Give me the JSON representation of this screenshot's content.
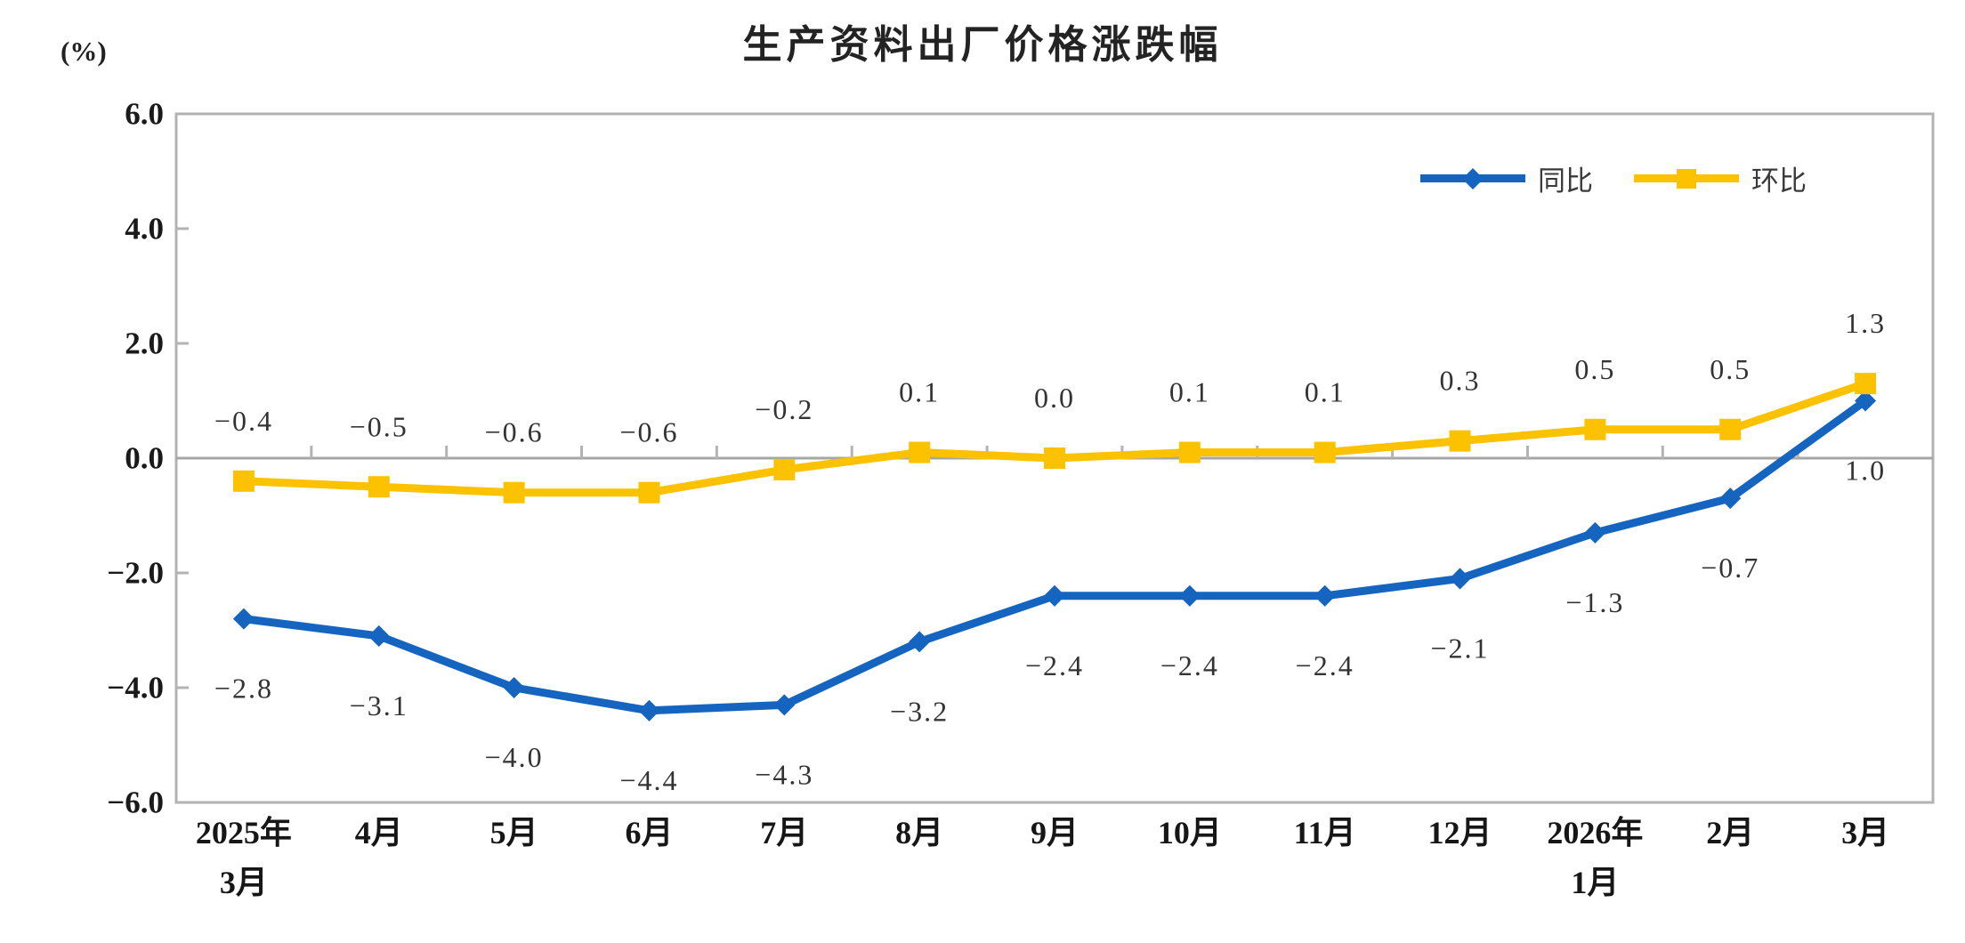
{
  "chart_data": {
    "type": "line",
    "title": "生产资料出厂价格涨跌幅",
    "unit_label": "(%)",
    "categories": [
      "2025年\n3月",
      "4月",
      "5月",
      "6月",
      "7月",
      "8月",
      "9月",
      "10月",
      "11月",
      "12月",
      "2026年\n1月",
      "2月",
      "3月"
    ],
    "ylim": [
      -6,
      6
    ],
    "yticks": [
      6.0,
      4.0,
      2.0,
      0.0,
      -2.0,
      -4.0,
      -6.0
    ],
    "grid": false,
    "legend_position": "top-right",
    "series": [
      {
        "name": "同比",
        "color": "#1565c0",
        "marker": "diamond",
        "label_position": "below",
        "values": [
          -2.8,
          -3.1,
          -4.0,
          -4.4,
          -4.3,
          -3.2,
          -2.4,
          -2.4,
          -2.4,
          -2.1,
          -1.3,
          -0.7,
          1.0
        ]
      },
      {
        "name": "环比",
        "color": "#fcc200",
        "marker": "square",
        "label_position": "above",
        "values": [
          -0.4,
          -0.5,
          -0.6,
          -0.6,
          -0.2,
          0.1,
          0.0,
          0.1,
          0.1,
          0.3,
          0.5,
          0.5,
          1.3
        ]
      }
    ],
    "colors": {
      "frame": "#b3b3b3",
      "zero_line": "#a6a6a6",
      "tick_label": "#1a1a1a",
      "data_label": "#333333",
      "category_label": "#161616"
    }
  }
}
